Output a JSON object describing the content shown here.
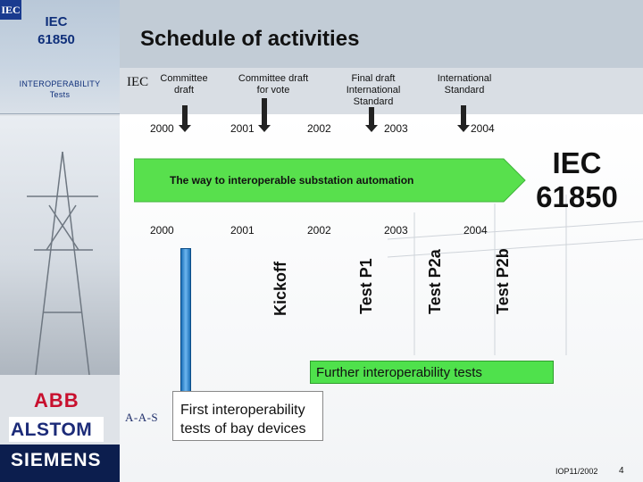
{
  "sidebar": {
    "logo_text": "IEC",
    "title_line1": "IEC",
    "title_line2": "61850",
    "subtitle_line1": "INTEROPERABILITY",
    "subtitle_line2": "Tests"
  },
  "header": {
    "title": "Schedule of activities"
  },
  "milestones": {
    "iec_prefix": "IEC",
    "committee_draft": [
      "Committee",
      "draft"
    ],
    "committee_draft_vote": [
      "Committee draft",
      "for vote"
    ],
    "final_draft": [
      "Final draft",
      "International",
      "Standard"
    ],
    "international_standard": [
      "International",
      "Standard"
    ]
  },
  "years_top": [
    "2000",
    "2001",
    "2002",
    "2003",
    "2004"
  ],
  "years_bottom": [
    "2000",
    "2001",
    "2002",
    "2003",
    "2004"
  ],
  "arrow": {
    "text": "The way to interoperable substation automation",
    "color": "#58e04d"
  },
  "big_label": [
    "IEC",
    "61850"
  ],
  "tests": {
    "kickoff": "Kickoff",
    "p1": "Test P1",
    "p2a": "Test P2a",
    "p2b": "Test P2b"
  },
  "boxes": {
    "further": "Further interoperability tests",
    "first_line1": "First interoperability",
    "first_line2": "tests of bay devices"
  },
  "partners": {
    "aas": "A-A-S",
    "abb": "ABB",
    "alstom": "ALSTOM",
    "siemens": "SIEMENS"
  },
  "footer": {
    "ref": "IOP11/2002",
    "page": "4"
  }
}
